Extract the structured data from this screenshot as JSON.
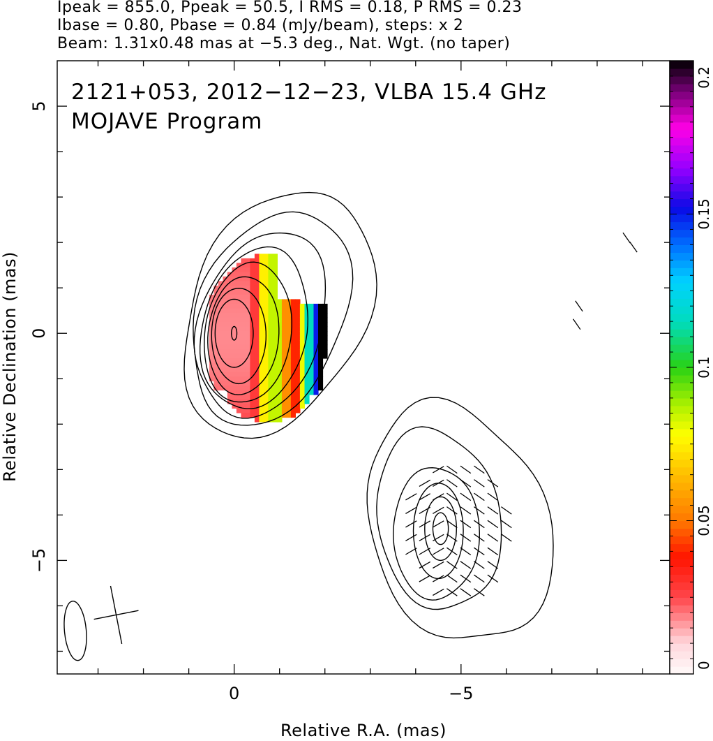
{
  "header": {
    "line1": "Ipeak = 855.0, Ppeak = 50.5, I RMS = 0.18, P RMS = 0.23",
    "line2": "Ibase = 0.80, Pbase = 0.84 (mJy/beam), steps: x 2",
    "line3": "Beam: 1.31x0.48 mas at −5.3 deg., Nat. Wgt. (no taper)"
  },
  "chart_data": {
    "type": "heatmap",
    "title": "2121+053, 2012−12−23, VLBA 15.4 GHz",
    "subtitle": "MOJAVE Program",
    "xlabel": "Relative R.A. (mas)",
    "ylabel": "Relative Declination (mas)",
    "x_tick_labels": [
      "0",
      "−5"
    ],
    "y_tick_labels": [
      "5",
      "0",
      "−5"
    ],
    "x_ticks": [
      0,
      -5
    ],
    "y_ticks": [
      5,
      0,
      -5
    ],
    "xlim": [
      3.9,
      -9.6
    ],
    "ylim": [
      -7.5,
      6
    ],
    "grid": false,
    "colorbar": {
      "label_min": "0",
      "label_max": "0.2",
      "tick_labels": [
        "0",
        "0.05",
        "0.1",
        "0.15",
        "0.2"
      ],
      "ticks": [
        0,
        0.05,
        0.1,
        0.15,
        0.2
      ]
    },
    "beam": {
      "major_mas": 1.31,
      "minor_mas": 0.48,
      "pa_deg": -5.3
    },
    "core": {
      "center_ra": 0.05,
      "center_dec": 0.0,
      "contour_levels": 9
    },
    "jet_component": {
      "center_ra": -4.6,
      "center_dec": -4.3,
      "contour_levels": 6
    }
  }
}
